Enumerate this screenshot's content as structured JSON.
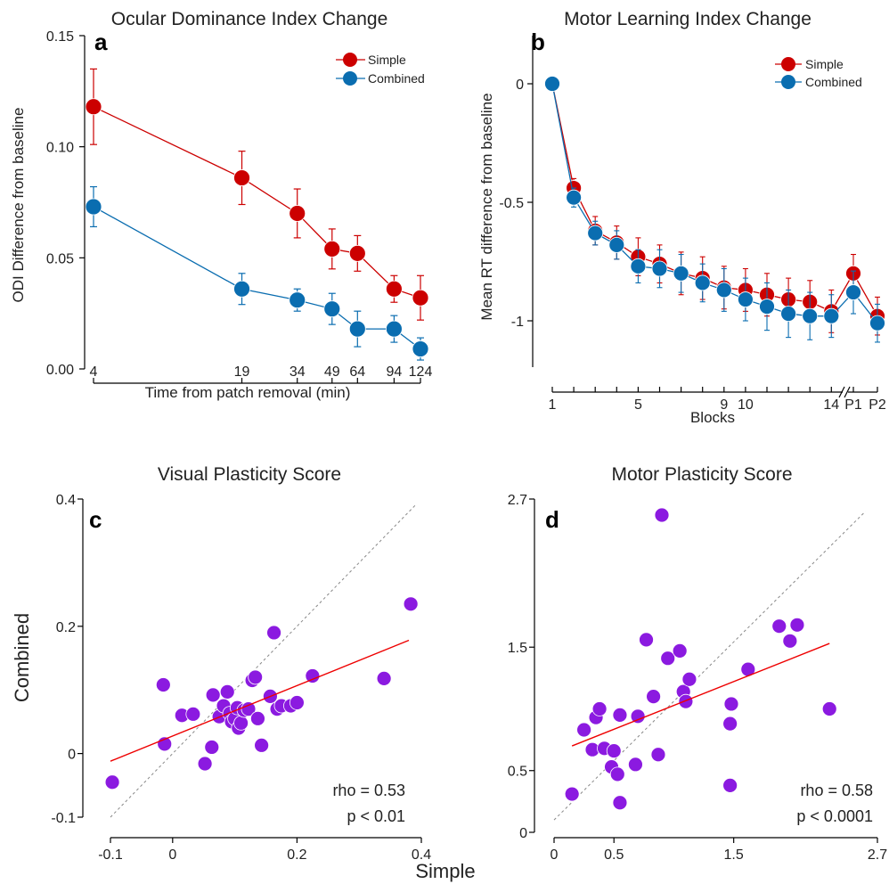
{
  "figure": {
    "shared_xlabel": "Simple",
    "shared_ylabel": "Combined"
  },
  "chart_data": [
    {
      "panel": "a",
      "type": "line",
      "title": "Ocular Dominance Index Change",
      "xlabel": "Time from patch removal (min)",
      "ylabel": "ODI Difference from baseline",
      "xscale": "log",
      "x": [
        4,
        19,
        34,
        49,
        64,
        94,
        124
      ],
      "x_tick_labels": [
        "4",
        "19",
        "34",
        "49",
        "64",
        "94",
        "124"
      ],
      "ylim": [
        0,
        0.15
      ],
      "y_ticks": [
        0,
        0.05,
        0.1,
        0.15
      ],
      "y_tick_labels": [
        "0.00",
        "0.05",
        "0.10",
        "0.15"
      ],
      "legend_position": "top-right",
      "series": [
        {
          "name": "Simple",
          "color": "#cc0000",
          "values": [
            0.118,
            0.086,
            0.07,
            0.054,
            0.052,
            0.036,
            0.032
          ],
          "errors": [
            0.017,
            0.012,
            0.011,
            0.009,
            0.008,
            0.006,
            0.01
          ]
        },
        {
          "name": "Combined",
          "color": "#0a6db0",
          "values": [
            0.073,
            0.036,
            0.031,
            0.027,
            0.018,
            0.018,
            0.009
          ],
          "errors": [
            0.009,
            0.007,
            0.005,
            0.007,
            0.008,
            0.006,
            0.005
          ]
        }
      ]
    },
    {
      "panel": "b",
      "type": "line",
      "title": "Motor Learning Index Change",
      "xlabel": "Blocks",
      "ylabel": "Mean RT difference from baseline",
      "x": [
        "1",
        "2",
        "3",
        "4",
        "5",
        "6",
        "7",
        "8",
        "9",
        "10",
        "11",
        "12",
        "13",
        "14",
        "P1",
        "P2"
      ],
      "x_tick_labels": [
        "1",
        "5",
        "9",
        "10",
        "14",
        "P1",
        "P2"
      ],
      "ylim": [
        -1.2,
        0.15
      ],
      "y_ticks": [
        0,
        -0.5,
        -1
      ],
      "y_tick_labels": [
        "0",
        "-0.5",
        "-1"
      ],
      "legend_position": "top-right",
      "series": [
        {
          "name": "Simple",
          "color": "#cc0000",
          "values": [
            0,
            -0.44,
            -0.62,
            -0.67,
            -0.73,
            -0.76,
            -0.8,
            -0.82,
            -0.86,
            -0.87,
            -0.89,
            -0.91,
            -0.92,
            -0.96,
            -0.8,
            -0.98
          ],
          "errors": [
            0,
            0.04,
            0.06,
            0.07,
            0.08,
            0.08,
            0.09,
            0.09,
            0.09,
            0.09,
            0.09,
            0.09,
            0.09,
            0.09,
            0.08,
            0.08
          ]
        },
        {
          "name": "Combined",
          "color": "#0a6db0",
          "values": [
            0,
            -0.48,
            -0.63,
            -0.68,
            -0.77,
            -0.78,
            -0.8,
            -0.84,
            -0.87,
            -0.91,
            -0.94,
            -0.97,
            -0.98,
            -0.98,
            -0.88,
            -1.01
          ],
          "errors": [
            0,
            0.04,
            0.05,
            0.06,
            0.07,
            0.08,
            0.08,
            0.08,
            0.09,
            0.09,
            0.1,
            0.1,
            0.1,
            0.09,
            0.09,
            0.08
          ]
        }
      ]
    },
    {
      "panel": "c",
      "type": "scatter",
      "title": "Visual Plasticity Score",
      "xlim": [
        -0.12,
        0.4
      ],
      "ylim": [
        -0.12,
        0.4
      ],
      "x_ticks": [
        -0.1,
        0,
        0.2,
        0.4
      ],
      "x_tick_labels": [
        "-0.1",
        "0",
        "0.2",
        "0.4"
      ],
      "y_ticks": [
        -0.1,
        0,
        0.2,
        0.4
      ],
      "y_tick_labels": [
        "-0.1",
        "0",
        "0.2",
        "0.4"
      ],
      "point_color": "#8b1ae0",
      "fit_line": {
        "x": [
          -0.1,
          0.38
        ],
        "y": [
          -0.012,
          0.178
        ],
        "color": "#ee0000"
      },
      "identity_line": {
        "x": [
          -0.1,
          0.39
        ],
        "y": [
          -0.1,
          0.39
        ]
      },
      "stats": [
        "rho = 0.53",
        "p < 0.01"
      ],
      "points": [
        {
          "x": -0.097,
          "y": -0.045
        },
        {
          "x": -0.015,
          "y": 0.108
        },
        {
          "x": -0.013,
          "y": 0.015
        },
        {
          "x": 0.015,
          "y": 0.06
        },
        {
          "x": 0.033,
          "y": 0.062
        },
        {
          "x": 0.052,
          "y": -0.016
        },
        {
          "x": 0.063,
          "y": 0.01
        },
        {
          "x": 0.065,
          "y": 0.092
        },
        {
          "x": 0.075,
          "y": 0.058
        },
        {
          "x": 0.082,
          "y": 0.075
        },
        {
          "x": 0.088,
          "y": 0.097
        },
        {
          "x": 0.092,
          "y": 0.063
        },
        {
          "x": 0.095,
          "y": 0.05
        },
        {
          "x": 0.1,
          "y": 0.055
        },
        {
          "x": 0.104,
          "y": 0.072
        },
        {
          "x": 0.106,
          "y": 0.04
        },
        {
          "x": 0.11,
          "y": 0.048
        },
        {
          "x": 0.115,
          "y": 0.068
        },
        {
          "x": 0.122,
          "y": 0.07
        },
        {
          "x": 0.128,
          "y": 0.115
        },
        {
          "x": 0.133,
          "y": 0.12
        },
        {
          "x": 0.137,
          "y": 0.055
        },
        {
          "x": 0.143,
          "y": 0.013
        },
        {
          "x": 0.157,
          "y": 0.09
        },
        {
          "x": 0.163,
          "y": 0.19
        },
        {
          "x": 0.168,
          "y": 0.07
        },
        {
          "x": 0.175,
          "y": 0.075
        },
        {
          "x": 0.19,
          "y": 0.075
        },
        {
          "x": 0.2,
          "y": 0.08
        },
        {
          "x": 0.225,
          "y": 0.122
        },
        {
          "x": 0.34,
          "y": 0.118
        },
        {
          "x": 0.383,
          "y": 0.235
        }
      ]
    },
    {
      "panel": "d",
      "type": "scatter",
      "title": "Motor Plasticity Score",
      "xlim": [
        0,
        2.7
      ],
      "ylim": [
        0,
        2.7
      ],
      "x_ticks": [
        0,
        0.5,
        1.5,
        2.7
      ],
      "x_tick_labels": [
        "0",
        "0.5",
        "1.5",
        "2.7"
      ],
      "y_ticks": [
        0,
        0.5,
        1.5,
        2.7
      ],
      "y_tick_labels": [
        "0",
        "0.5",
        "1.5",
        "2.7"
      ],
      "point_color": "#8b1ae0",
      "fit_line": {
        "x": [
          0.15,
          2.3
        ],
        "y": [
          0.7,
          1.53
        ],
        "color": "#ee0000"
      },
      "identity_line": {
        "x": [
          0,
          2.6
        ],
        "y": [
          0.1,
          2.6
        ]
      },
      "stats": [
        "rho = 0.58",
        "p < 0.0001"
      ],
      "points": [
        {
          "x": 0.15,
          "y": 0.31
        },
        {
          "x": 0.25,
          "y": 0.83
        },
        {
          "x": 0.32,
          "y": 0.67
        },
        {
          "x": 0.35,
          "y": 0.93
        },
        {
          "x": 0.38,
          "y": 1.0
        },
        {
          "x": 0.42,
          "y": 0.68
        },
        {
          "x": 0.48,
          "y": 0.53
        },
        {
          "x": 0.5,
          "y": 0.66
        },
        {
          "x": 0.53,
          "y": 0.47
        },
        {
          "x": 0.55,
          "y": 0.24
        },
        {
          "x": 0.55,
          "y": 0.95
        },
        {
          "x": 0.68,
          "y": 0.55
        },
        {
          "x": 0.7,
          "y": 0.94
        },
        {
          "x": 0.77,
          "y": 1.56
        },
        {
          "x": 0.83,
          "y": 1.1
        },
        {
          "x": 0.87,
          "y": 0.63
        },
        {
          "x": 0.9,
          "y": 2.57
        },
        {
          "x": 0.95,
          "y": 1.41
        },
        {
          "x": 1.05,
          "y": 1.47
        },
        {
          "x": 1.08,
          "y": 1.14
        },
        {
          "x": 1.1,
          "y": 1.06
        },
        {
          "x": 1.13,
          "y": 1.24
        },
        {
          "x": 1.47,
          "y": 0.38
        },
        {
          "x": 1.47,
          "y": 0.88
        },
        {
          "x": 1.48,
          "y": 1.04
        },
        {
          "x": 1.62,
          "y": 1.32
        },
        {
          "x": 1.88,
          "y": 1.67
        },
        {
          "x": 1.97,
          "y": 1.55
        },
        {
          "x": 2.03,
          "y": 1.68
        },
        {
          "x": 2.3,
          "y": 1.0
        }
      ]
    }
  ]
}
